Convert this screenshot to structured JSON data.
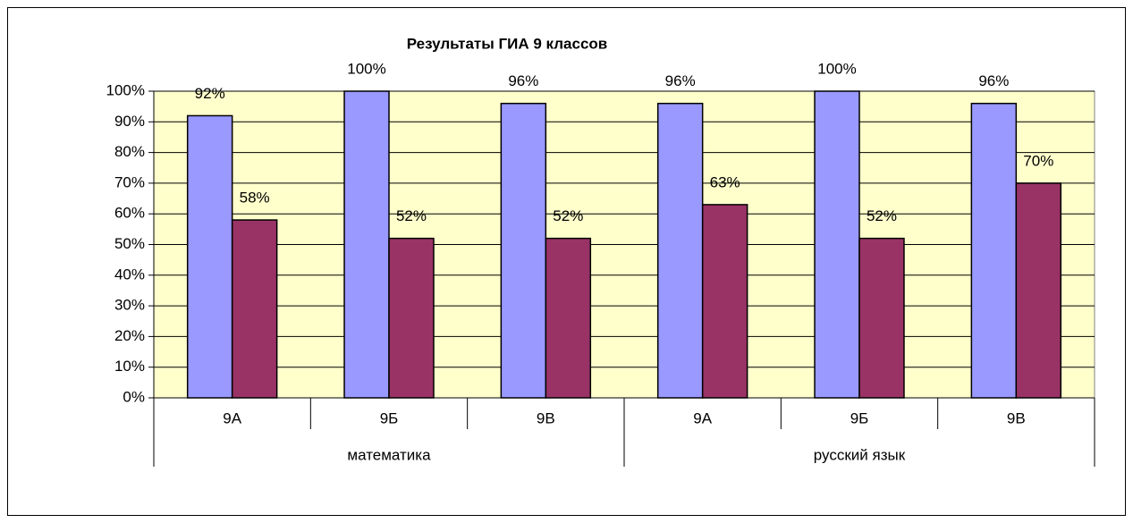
{
  "chart_data": {
    "type": "bar",
    "title": "Результаты ГИА 9 классов",
    "categories": [
      "9А",
      "9Б",
      "9В",
      "9А",
      "9Б",
      "9В"
    ],
    "groups": [
      "математика",
      "русский язык"
    ],
    "series": [
      {
        "color": "#9999ff",
        "values": [
          92,
          100,
          96,
          96,
          100,
          96
        ],
        "value_labels": [
          "92%",
          "100%",
          "96%",
          "96%",
          "100%",
          "96%"
        ]
      },
      {
        "color": "#993366",
        "values": [
          58,
          52,
          52,
          63,
          52,
          70
        ],
        "value_labels": [
          "58%",
          "52%",
          "52%",
          "63%",
          "52%",
          "70%"
        ]
      }
    ],
    "ylim": [
      0,
      100
    ],
    "yticks": [
      {
        "value": 0,
        "label": "0%"
      },
      {
        "value": 10,
        "label": "10%"
      },
      {
        "value": 20,
        "label": "20%"
      },
      {
        "value": 30,
        "label": "30%"
      },
      {
        "value": 40,
        "label": "40%"
      },
      {
        "value": 50,
        "label": "50%"
      },
      {
        "value": 60,
        "label": "60%"
      },
      {
        "value": 70,
        "label": "70%"
      },
      {
        "value": 80,
        "label": "80%"
      },
      {
        "value": 90,
        "label": "90%"
      },
      {
        "value": 100,
        "label": "100%"
      }
    ],
    "grid": true,
    "plot_background": "#ffffcc"
  }
}
